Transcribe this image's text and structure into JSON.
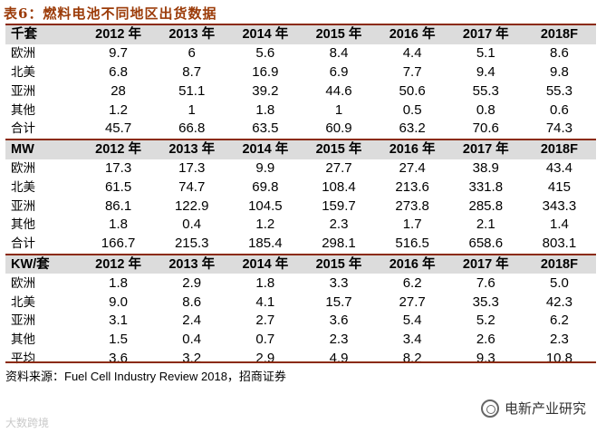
{
  "title": "表6：燃料电池不同地区出货数据",
  "years": [
    "2012 年",
    "2013 年",
    "2014 年",
    "2015 年",
    "2016 年",
    "2017 年",
    "2018F"
  ],
  "sections": [
    {
      "unit": "千套",
      "rows": [
        {
          "label": "欧洲",
          "values": [
            "9.7",
            "6",
            "5.6",
            "8.4",
            "4.4",
            "5.1",
            "8.6"
          ]
        },
        {
          "label": "北美",
          "values": [
            "6.8",
            "8.7",
            "16.9",
            "6.9",
            "7.7",
            "9.4",
            "9.8"
          ]
        },
        {
          "label": "亚洲",
          "values": [
            "28",
            "51.1",
            "39.2",
            "44.6",
            "50.6",
            "55.3",
            "55.3"
          ]
        },
        {
          "label": "其他",
          "values": [
            "1.2",
            "1",
            "1.8",
            "1",
            "0.5",
            "0.8",
            "0.6"
          ]
        },
        {
          "label": "合计",
          "values": [
            "45.7",
            "66.8",
            "63.5",
            "60.9",
            "63.2",
            "70.6",
            "74.3"
          ]
        }
      ]
    },
    {
      "unit": "MW",
      "rows": [
        {
          "label": "欧洲",
          "values": [
            "17.3",
            "17.3",
            "9.9",
            "27.7",
            "27.4",
            "38.9",
            "43.4"
          ]
        },
        {
          "label": "北美",
          "values": [
            "61.5",
            "74.7",
            "69.8",
            "108.4",
            "213.6",
            "331.8",
            "415"
          ]
        },
        {
          "label": "亚洲",
          "values": [
            "86.1",
            "122.9",
            "104.5",
            "159.7",
            "273.8",
            "285.8",
            "343.3"
          ]
        },
        {
          "label": "其他",
          "values": [
            "1.8",
            "0.4",
            "1.2",
            "2.3",
            "1.7",
            "2.1",
            "1.4"
          ]
        },
        {
          "label": "合计",
          "values": [
            "166.7",
            "215.3",
            "185.4",
            "298.1",
            "516.5",
            "658.6",
            "803.1"
          ]
        }
      ]
    },
    {
      "unit": "KW/套",
      "rows": [
        {
          "label": "欧洲",
          "values": [
            "1.8",
            "2.9",
            "1.8",
            "3.3",
            "6.2",
            "7.6",
            "5.0"
          ]
        },
        {
          "label": "北美",
          "values": [
            "9.0",
            "8.6",
            "4.1",
            "15.7",
            "27.7",
            "35.3",
            "42.3"
          ]
        },
        {
          "label": "亚洲",
          "values": [
            "3.1",
            "2.4",
            "2.7",
            "3.6",
            "5.4",
            "5.2",
            "6.2"
          ]
        },
        {
          "label": "其他",
          "values": [
            "1.5",
            "0.4",
            "0.7",
            "2.3",
            "3.4",
            "2.6",
            "2.3"
          ]
        },
        {
          "label": "平均",
          "values": [
            "3.6",
            "3.2",
            "2.9",
            "4.9",
            "8.2",
            "9.3",
            "10.8"
          ]
        }
      ]
    }
  ],
  "source": "资料来源：Fuel Cell Industry Review 2018，招商证券",
  "watermark": {
    "brand": "电新产业研究",
    "corner": "大数跨境"
  }
}
